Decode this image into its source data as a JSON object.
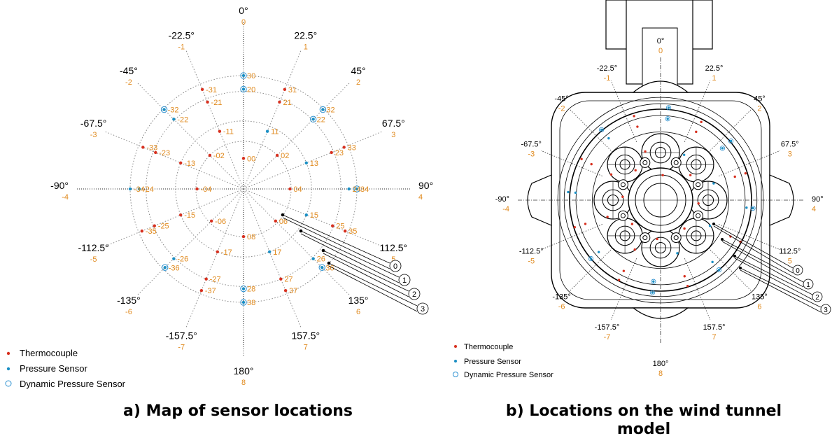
{
  "captions": {
    "a": "a)  Map of sensor locations",
    "b_line1": "b)  Locations on the wind tunnel",
    "b_line2": "model"
  },
  "legend": {
    "thermocouple": "Thermocouple",
    "pressure": "Pressure Sensor",
    "dynamic": "Dynamic Pressure Sensor"
  },
  "colors": {
    "thermocouple": "#d7301f",
    "pressure": "#1b8fc4",
    "dynamic_ring": "#2a8fd0",
    "orange_label": "#e08a1e",
    "black_label": "#000000",
    "grid": "#888888"
  },
  "angles": [
    {
      "deg": "0°",
      "idx": "0"
    },
    {
      "deg": "22.5°",
      "idx": "1"
    },
    {
      "deg": "45°",
      "idx": "2"
    },
    {
      "deg": "67.5°",
      "idx": "3"
    },
    {
      "deg": "90°",
      "idx": "4"
    },
    {
      "deg": "112.5°",
      "idx": "5"
    },
    {
      "deg": "135°",
      "idx": "6"
    },
    {
      "deg": "157.5°",
      "idx": "7"
    },
    {
      "deg": "180°",
      "idx": "8"
    },
    {
      "deg": "-157.5°",
      "idx": "-7"
    },
    {
      "deg": "-135°",
      "idx": "-6"
    },
    {
      "deg": "-112.5°",
      "idx": "-5"
    },
    {
      "deg": "-90°",
      "idx": "-4"
    },
    {
      "deg": "-67.5°",
      "idx": "-3"
    },
    {
      "deg": "-45°",
      "idx": "-2"
    },
    {
      "deg": "-22.5°",
      "idx": "-1"
    }
  ],
  "rings": [
    "0",
    "1",
    "2",
    "3"
  ],
  "sensors_a": [
    {
      "id": "00",
      "sector": 0,
      "r": 0.27,
      "t": "T",
      "la": 0,
      "lr": 0.27
    },
    {
      "id": "30",
      "sector": 0,
      "r": 1.0,
      "t": "D",
      "la": 0,
      "lr": 1.0
    },
    {
      "id": "20",
      "sector": 0,
      "r": 0.88,
      "t": "D",
      "la": 0,
      "lr": 0.88
    },
    {
      "id": "31",
      "sector": 1,
      "r": 0.95,
      "t": "T",
      "la": 22.5,
      "lr": 0.95
    },
    {
      "id": "21",
      "sector": 1,
      "r": 0.83,
      "t": "T",
      "la": 22.5,
      "lr": 0.83
    },
    {
      "id": "11",
      "sector": 1,
      "r": 0.55,
      "t": "P",
      "la": 22.5,
      "lr": 0.55
    },
    {
      "id": "32",
      "sector": 2,
      "r": 0.99,
      "t": "D",
      "la": 45,
      "lr": 0.99
    },
    {
      "id": "22",
      "sector": 2,
      "r": 0.87,
      "t": "D",
      "la": 45,
      "lr": 0.87
    },
    {
      "id": "02",
      "sector": 2,
      "r": 0.42,
      "t": "T",
      "la": 45,
      "lr": 0.42
    },
    {
      "id": "33",
      "sector": 3,
      "r": 0.96,
      "t": "T",
      "la": 67.5,
      "lr": 0.96
    },
    {
      "id": "23",
      "sector": 3,
      "r": 0.84,
      "t": "T",
      "la": 67.5,
      "lr": 0.84
    },
    {
      "id": "13",
      "sector": 3,
      "r": 0.6,
      "t": "P",
      "la": 67.5,
      "lr": 0.6
    },
    {
      "id": "34",
      "sector": 4,
      "r": 1.0,
      "t": "D",
      "la": 90,
      "lr": 1.0
    },
    {
      "id": "24",
      "sector": 4,
      "r": 0.93,
      "t": "P",
      "la": 90,
      "lr": 0.93
    },
    {
      "id": "04",
      "sector": 4,
      "r": 0.41,
      "t": "T",
      "la": 90,
      "lr": 0.41
    },
    {
      "id": "15",
      "sector": 5,
      "r": 0.6,
      "t": "P",
      "la": 112.5,
      "lr": 0.6
    },
    {
      "id": "25",
      "sector": 5,
      "r": 0.85,
      "t": "T",
      "la": 112.5,
      "lr": 0.85
    },
    {
      "id": "35",
      "sector": 5,
      "r": 0.97,
      "t": "T",
      "la": 112.5,
      "lr": 0.97
    },
    {
      "id": "06",
      "sector": 6,
      "r": 0.4,
      "t": "T",
      "la": 135,
      "lr": 0.4
    },
    {
      "id": "26",
      "sector": 6,
      "r": 0.87,
      "t": "P",
      "la": 135,
      "lr": 0.87
    },
    {
      "id": "36",
      "sector": 6,
      "r": 0.98,
      "t": "D",
      "la": 135,
      "lr": 0.98
    },
    {
      "id": "17",
      "sector": 7,
      "r": 0.6,
      "t": "P",
      "la": 157.5,
      "lr": 0.6
    },
    {
      "id": "27",
      "sector": 7,
      "r": 0.86,
      "t": "T",
      "la": 157.5,
      "lr": 0.86
    },
    {
      "id": "37",
      "sector": 7,
      "r": 0.97,
      "t": "T",
      "la": 157.5,
      "lr": 0.97
    },
    {
      "id": "08",
      "sector": 8,
      "r": 0.42,
      "t": "T",
      "la": 180,
      "lr": 0.42
    },
    {
      "id": "28",
      "sector": 8,
      "r": 0.88,
      "t": "D",
      "la": 180,
      "lr": 0.88
    },
    {
      "id": "38",
      "sector": 8,
      "r": 1.0,
      "t": "D",
      "la": 180,
      "lr": 1.0
    },
    {
      "id": "-17",
      "sector": -7,
      "r": 0.6,
      "t": "T",
      "la": -157.5,
      "lr": 0.6
    },
    {
      "id": "-27",
      "sector": -7,
      "r": 0.86,
      "t": "T",
      "la": -157.5,
      "lr": 0.86
    },
    {
      "id": "-37",
      "sector": -7,
      "r": 0.97,
      "t": "T",
      "la": -157.5,
      "lr": 0.97
    },
    {
      "id": "-06",
      "sector": -6,
      "r": 0.4,
      "t": "T",
      "la": -135,
      "lr": 0.4
    },
    {
      "id": "-26",
      "sector": -6,
      "r": 0.87,
      "t": "P",
      "la": -135,
      "lr": 0.87
    },
    {
      "id": "-36",
      "sector": -6,
      "r": 0.98,
      "t": "D",
      "la": -135,
      "lr": 0.98
    },
    {
      "id": "-15",
      "sector": -5,
      "r": 0.6,
      "t": "T",
      "la": -112.5,
      "lr": 0.6
    },
    {
      "id": "-25",
      "sector": -5,
      "r": 0.85,
      "t": "T",
      "la": -112.5,
      "lr": 0.85
    },
    {
      "id": "-35",
      "sector": -5,
      "r": 0.97,
      "t": "T",
      "la": -112.5,
      "lr": 0.97
    },
    {
      "id": "-04",
      "sector": -4,
      "r": 0.41,
      "t": "T",
      "la": -90,
      "lr": 0.41
    },
    {
      "id": "-24",
      "sector": -4,
      "r": 0.92,
      "t": "P",
      "la": -90,
      "lr": 0.92
    },
    {
      "id": "-34",
      "sector": -4,
      "r": 1.0,
      "t": "P",
      "la": -90,
      "lr": 1.0
    },
    {
      "id": "-13",
      "sector": -3,
      "r": 0.6,
      "t": "T",
      "la": -67.5,
      "lr": 0.6
    },
    {
      "id": "-23",
      "sector": -3,
      "r": 0.84,
      "t": "T",
      "la": -67.5,
      "lr": 0.84
    },
    {
      "id": "-33",
      "sector": -3,
      "r": 0.96,
      "t": "T",
      "la": -67.5,
      "lr": 0.96
    },
    {
      "id": "-02",
      "sector": -2,
      "r": 0.42,
      "t": "T",
      "la": -45,
      "lr": 0.42
    },
    {
      "id": "-22",
      "sector": -2,
      "r": 0.87,
      "t": "P",
      "la": -45,
      "lr": 0.87
    },
    {
      "id": "-32",
      "sector": -2,
      "r": 0.99,
      "t": "D",
      "la": -45,
      "lr": 0.99
    },
    {
      "id": "-11",
      "sector": -1,
      "r": 0.55,
      "t": "T",
      "la": -22.5,
      "lr": 0.55
    },
    {
      "id": "-21",
      "sector": -1,
      "r": 0.83,
      "t": "T",
      "la": -22.5,
      "lr": 0.83
    },
    {
      "id": "-31",
      "sector": -1,
      "r": 0.95,
      "t": "T",
      "la": -22.5,
      "lr": 0.95
    }
  ]
}
